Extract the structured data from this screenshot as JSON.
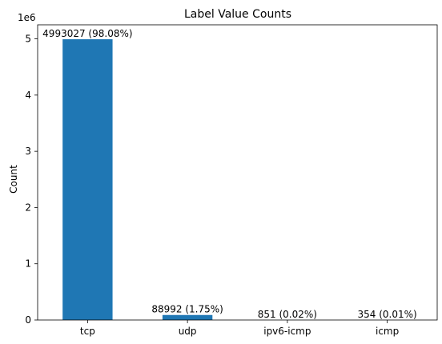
{
  "chart_data": {
    "type": "bar",
    "title": "Label Value Counts",
    "xlabel": "",
    "ylabel": "Count",
    "y_scale_label": "1e6",
    "categories": [
      "tcp",
      "udp",
      "ipv6-icmp",
      "icmp"
    ],
    "values": [
      4993027,
      88992,
      851,
      354
    ],
    "data_labels": [
      "4993027 (98.08%)",
      "88992 (1.75%)",
      "851 (0.02%)",
      "354 (0.01%)"
    ],
    "ylim": [
      0,
      5250000
    ],
    "yticks": [
      0,
      1000000,
      2000000,
      3000000,
      4000000,
      5000000
    ],
    "ytick_labels": [
      "0",
      "1",
      "2",
      "3",
      "4",
      "5"
    ],
    "grid": false,
    "bar_color": "#1f77b4"
  }
}
